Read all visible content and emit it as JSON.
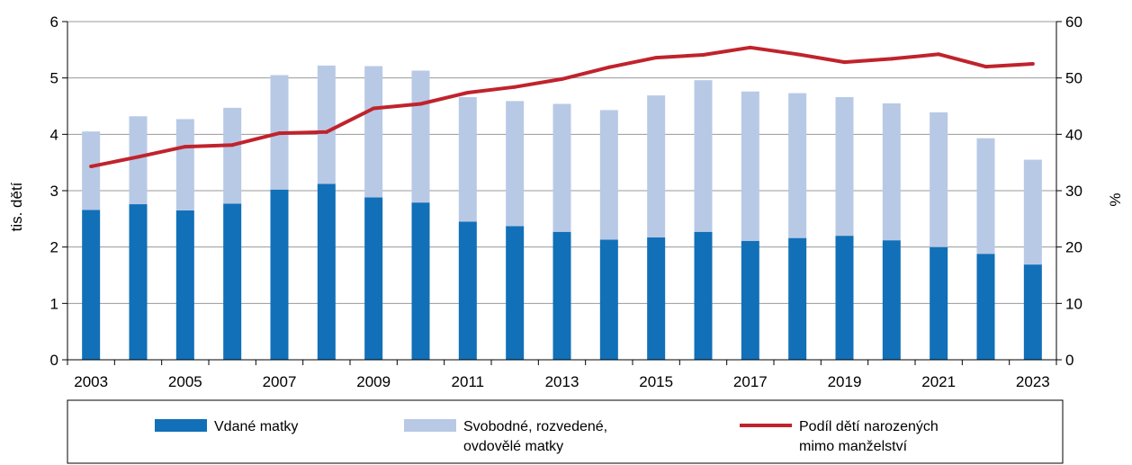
{
  "chart_data": {
    "type": "bar",
    "stacked": true,
    "x": [
      2003,
      2004,
      2005,
      2006,
      2007,
      2008,
      2009,
      2010,
      2011,
      2012,
      2013,
      2014,
      2015,
      2016,
      2017,
      2018,
      2019,
      2020,
      2021,
      2022,
      2023
    ],
    "x_tick_labels": [
      "2003",
      "2005",
      "2007",
      "2009",
      "2011",
      "2013",
      "2015",
      "2017",
      "2019",
      "2021",
      "2023"
    ],
    "series": [
      {
        "name": "Vdané matky",
        "type": "bar",
        "axis": "left",
        "color": "#1170b8",
        "values": [
          2.66,
          2.76,
          2.65,
          2.77,
          3.02,
          3.12,
          2.88,
          2.79,
          2.45,
          2.37,
          2.27,
          2.13,
          2.17,
          2.27,
          2.11,
          2.16,
          2.2,
          2.12,
          2.0,
          1.88,
          1.69
        ]
      },
      {
        "name": "Svobodné, rozvedené, ovdovělé matky",
        "type": "bar",
        "axis": "left",
        "color": "#b8c9e6",
        "values": [
          1.39,
          1.56,
          1.62,
          1.7,
          2.03,
          2.1,
          2.33,
          2.34,
          2.21,
          2.22,
          2.27,
          2.3,
          2.52,
          2.69,
          2.65,
          2.57,
          2.46,
          2.43,
          2.39,
          2.05,
          1.86
        ]
      },
      {
        "name": "Podíl dětí narozených mimo manželství",
        "type": "line",
        "axis": "right",
        "color": "#c0232c",
        "values": [
          34.3,
          36.0,
          37.8,
          38.1,
          40.2,
          40.4,
          44.6,
          45.4,
          47.4,
          48.4,
          49.8,
          51.9,
          53.6,
          54.1,
          55.4,
          54.2,
          52.8,
          53.4,
          54.2,
          52.0,
          52.5
        ]
      }
    ],
    "ylabel": "tis. dětí",
    "y2label": "%",
    "ylim": [
      0,
      6
    ],
    "y_ticks": [
      "0",
      "1",
      "2",
      "3",
      "4",
      "5",
      "6"
    ],
    "y2lim": [
      0,
      60
    ],
    "y2_ticks": [
      "0",
      "10",
      "20",
      "30",
      "40",
      "50",
      "60"
    ],
    "grid": true,
    "legend": {
      "position": "bottom",
      "items": [
        {
          "lines": [
            "Vdané matky"
          ],
          "color": "#1170b8",
          "kind": "bar"
        },
        {
          "lines": [
            "Svobodné, rozvedené,",
            "ovdovělé matky"
          ],
          "color": "#b8c9e6",
          "kind": "bar"
        },
        {
          "lines": [
            "Podíl dětí narozených",
            "mimo manželství"
          ],
          "color": "#c0232c",
          "kind": "line"
        }
      ]
    }
  }
}
